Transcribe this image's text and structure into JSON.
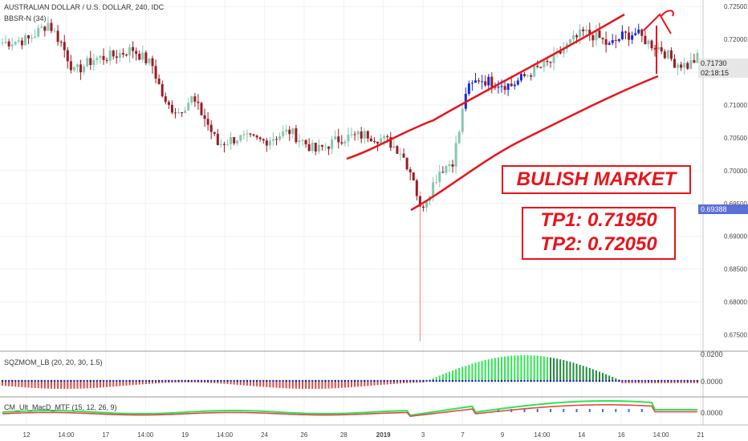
{
  "header": {
    "title": "AUSTRALIAN DOLLAR / U.S. DOLLAR, 240, IDC",
    "indicator": "BBSR-N (34)",
    "sqz_label": "SQZMOM_LB (20, 20, 30, 1.5)",
    "macd_label": "CM_Ult_MacD_MTF (15, 12, 26, 9)"
  },
  "price_labels": {
    "current": "0.71730",
    "countdown": "02:18:15",
    "level_mark": "0.69388",
    "sqz_top": "0.0200",
    "sqz_zero": "0.0000",
    "macd_zero": "0.0000"
  },
  "annotations": {
    "bulish": "BULISH MARKET",
    "tp1": "TP1: 0.71950",
    "tp2": "TP2: 0.72050"
  },
  "colors": {
    "up": "#87c7b0",
    "down": "#9b1c24",
    "blue": "#1a2bd6",
    "annot": "#e8141b",
    "hist_pos": "#2ee650",
    "hist_neg": "#e04a4a"
  },
  "chart_data": {
    "type": "candlestick",
    "title": "AUSTRALIAN DOLLAR / U.S. DOLLAR, 240, IDC",
    "ylim": [
      0.6725,
      0.726
    ],
    "y_ticks": [
      "0.72500",
      "0.72000",
      "0.71500",
      "0.71000",
      "0.70500",
      "0.70000",
      "0.69500",
      "0.69000",
      "0.68500",
      "0.68000",
      "0.67500"
    ],
    "x_ticks": [
      "12",
      "14:00",
      "17",
      "14:00",
      "19",
      "14:00",
      "24",
      "26",
      "28",
      "2019",
      "3",
      "7",
      "9",
      "14:00",
      "14",
      "16",
      "14:00",
      "21"
    ],
    "waypoints": [
      [
        0,
        0.7195
      ],
      [
        8,
        0.72
      ],
      [
        14,
        0.7225
      ],
      [
        18,
        0.7195
      ],
      [
        22,
        0.715
      ],
      [
        28,
        0.717
      ],
      [
        34,
        0.7175
      ],
      [
        40,
        0.7185
      ],
      [
        46,
        0.716
      ],
      [
        50,
        0.71
      ],
      [
        54,
        0.709
      ],
      [
        58,
        0.711
      ],
      [
        62,
        0.708
      ],
      [
        66,
        0.704
      ],
      [
        72,
        0.705
      ],
      [
        80,
        0.7045
      ],
      [
        88,
        0.706
      ],
      [
        96,
        0.703
      ],
      [
        104,
        0.705
      ],
      [
        112,
        0.7055
      ],
      [
        118,
        0.7045
      ],
      [
        122,
        0.703
      ],
      [
        126,
        0.699
      ],
      [
        128,
        0.694
      ],
      [
        130,
        0.696
      ],
      [
        134,
        0.7
      ],
      [
        138,
        0.7015
      ],
      [
        140,
        0.706
      ],
      [
        142,
        0.712
      ],
      [
        146,
        0.714
      ],
      [
        150,
        0.7135
      ],
      [
        156,
        0.713
      ],
      [
        162,
        0.715
      ],
      [
        168,
        0.7165
      ],
      [
        174,
        0.7195
      ],
      [
        178,
        0.721
      ],
      [
        182,
        0.7205
      ],
      [
        186,
        0.719
      ],
      [
        190,
        0.7205
      ],
      [
        194,
        0.721
      ],
      [
        198,
        0.7195
      ],
      [
        202,
        0.7185
      ],
      [
        206,
        0.7165
      ],
      [
        210,
        0.716
      ],
      [
        213,
        0.7172
      ]
    ],
    "blue_range": [
      [
        142,
        160
      ],
      [
        184,
        196
      ]
    ],
    "low_wick": 0.674
  }
}
